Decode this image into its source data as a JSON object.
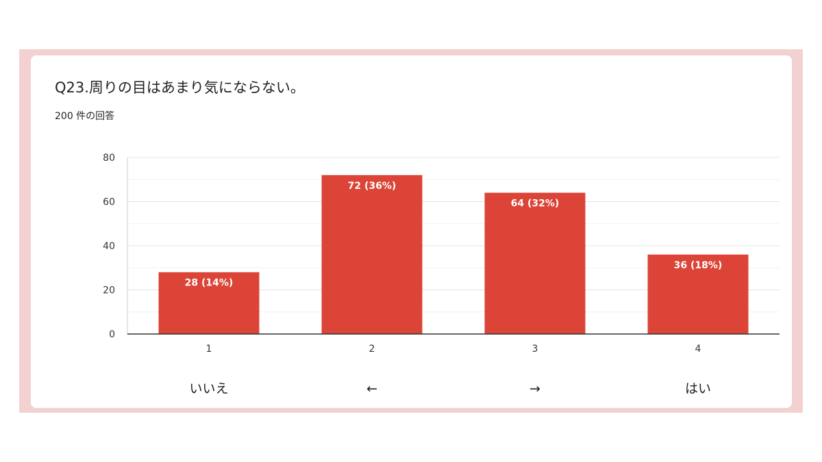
{
  "question": {
    "title": "Q23.周りの目はあまり気にならない。",
    "count": "200 件の回答"
  },
  "colors": {
    "bar": "#db4437",
    "grid": "#e6e6e6",
    "axis": "#333333",
    "frame": "#f3d1d1"
  },
  "chart_data": {
    "type": "bar",
    "categories": [
      "1",
      "2",
      "3",
      "4"
    ],
    "values": [
      28,
      72,
      64,
      36
    ],
    "data_labels": [
      "28 (14%)",
      "72 (36%)",
      "64 (32%)",
      "36 (18%)"
    ],
    "category_captions": [
      "いいえ",
      "←",
      "→",
      "はい"
    ],
    "ylim": [
      0,
      80
    ],
    "yticks": [
      0,
      20,
      40,
      60,
      80
    ],
    "grid": true,
    "xlabel": "",
    "ylabel": ""
  }
}
